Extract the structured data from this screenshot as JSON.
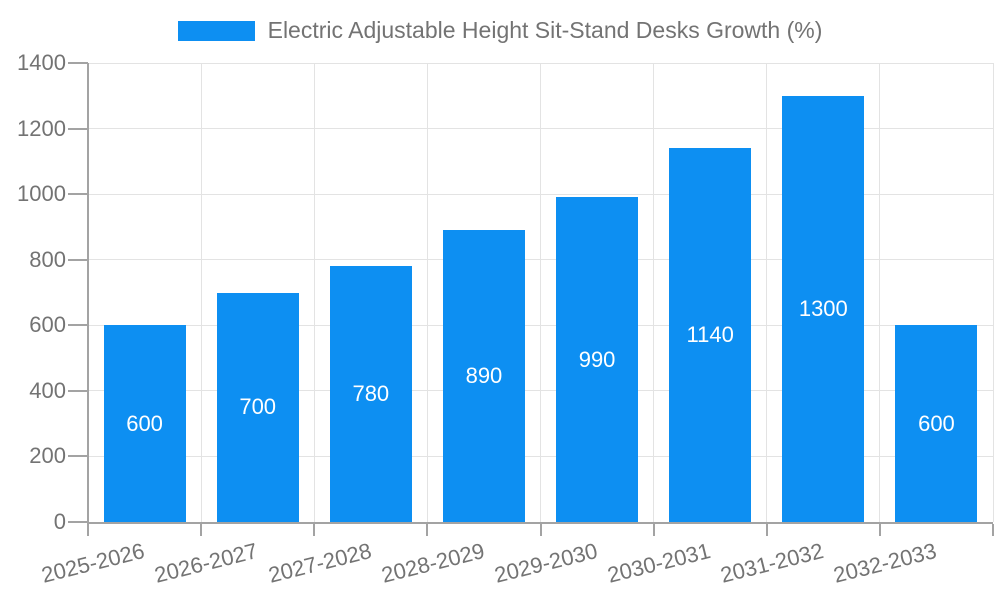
{
  "legend": {
    "label": "Electric Adjustable Height Sit-Stand Desks Growth (%)"
  },
  "colors": {
    "bar": "#0d8ff2",
    "axis": "#a3a3a3",
    "grid": "#e3e3e3",
    "text": "#737373",
    "value_label": "#ffffff",
    "background": "#ffffff"
  },
  "chart_data": {
    "type": "bar",
    "title": "Electric Adjustable Height Sit-Stand Desks Growth (%)",
    "categories": [
      "2025-2026",
      "2026-2027",
      "2027-2028",
      "2028-2029",
      "2029-2030",
      "2030-2031",
      "2031-2032",
      "2032-2033"
    ],
    "values": [
      600,
      700,
      780,
      890,
      990,
      1140,
      1300,
      600
    ],
    "xlabel": "",
    "ylabel": "",
    "ylim": [
      0,
      1400
    ],
    "yticks": [
      0,
      200,
      400,
      600,
      800,
      1000,
      1200,
      1400
    ],
    "grid": true,
    "legend_position": "top-center",
    "value_label_position": "inside-center",
    "x_label_rotation_deg": -14
  }
}
